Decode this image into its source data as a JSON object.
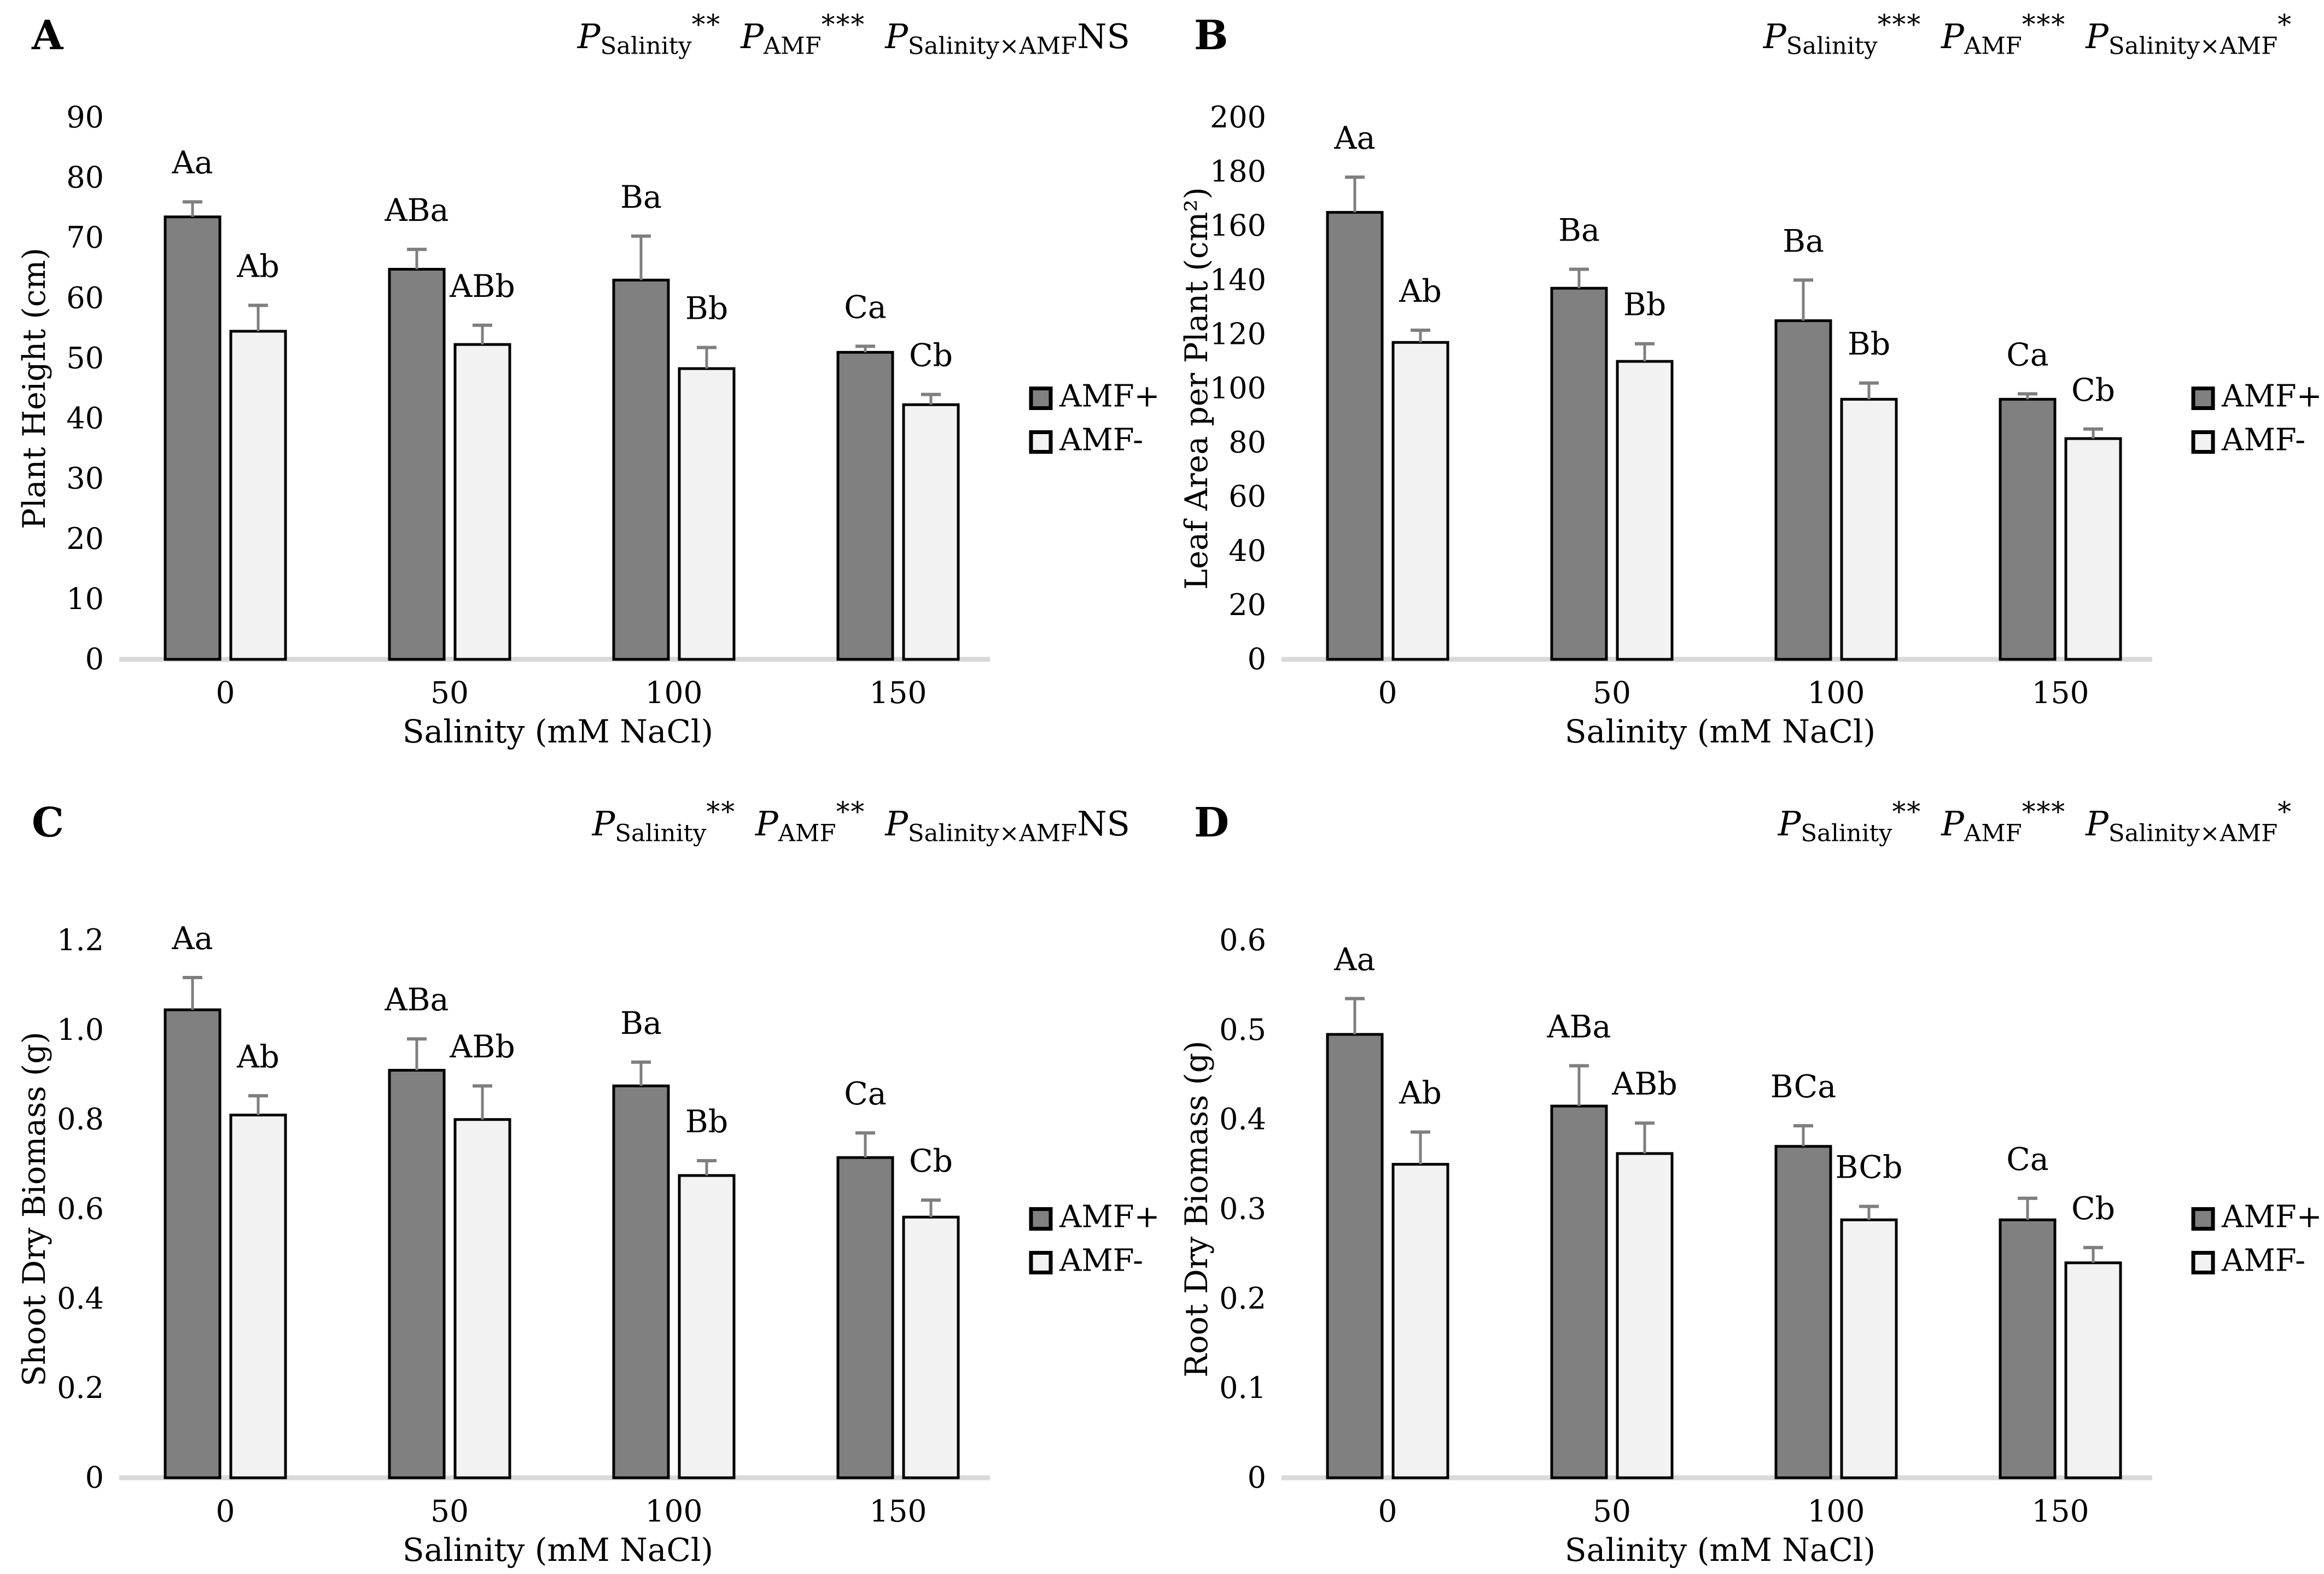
{
  "legend": {
    "items": [
      {
        "label": "AMF+",
        "color": "#808080"
      },
      {
        "label": "AMF-",
        "color": "#f2f2f2"
      }
    ]
  },
  "colors": {
    "bar_dark": "#808080",
    "bar_light": "#f2f2f2",
    "bar_border": "#000000",
    "error_bar": "#7f7f7f",
    "axis_line": "#d9d9d9",
    "text": "#000000"
  },
  "chart_data": [
    {
      "type": "bar",
      "panel": "A",
      "p_values": [
        {
          "term": "Salinity",
          "sig": "**"
        },
        {
          "term": "AMF",
          "sig": "***"
        },
        {
          "term": "Salinity×AMF",
          "sig": "NS"
        }
      ],
      "categories": [
        "0",
        "50",
        "100",
        "150"
      ],
      "series": [
        {
          "name": "AMF+",
          "fill": "#808080",
          "values": [
            73.5,
            64.8,
            63.0,
            51.0
          ],
          "error_up": [
            2.5,
            3.3,
            7.3,
            1.0
          ],
          "point_labels": [
            "Aa",
            "ABa",
            "Ba",
            "Ca"
          ]
        },
        {
          "name": "AMF-",
          "fill": "#f2f2f2",
          "values": [
            54.5,
            52.3,
            48.3,
            42.3
          ],
          "error_up": [
            4.3,
            3.2,
            3.5,
            1.7
          ],
          "point_labels": [
            "Ab",
            "ABb",
            "Bb",
            "Cb"
          ]
        }
      ],
      "ylabel": "Plant Height (cm)",
      "xlabel": "Salinity (mM NaCl)",
      "ylim": [
        0,
        90
      ],
      "yticks": [
        "0",
        "10",
        "20",
        "30",
        "40",
        "50",
        "60",
        "70",
        "80",
        "90"
      ],
      "grid": false,
      "legend_position": "middle-right"
    },
    {
      "type": "bar",
      "panel": "B",
      "p_values": [
        {
          "term": "Salinity",
          "sig": "***"
        },
        {
          "term": "AMF",
          "sig": "***"
        },
        {
          "term": "Salinity×AMF",
          "sig": "*"
        }
      ],
      "categories": [
        "0",
        "50",
        "100",
        "150"
      ],
      "series": [
        {
          "name": "AMF+",
          "fill": "#808080",
          "values": [
            165,
            137,
            125,
            96
          ],
          "error_up": [
            13,
            7,
            15,
            2
          ],
          "point_labels": [
            "Aa",
            "Ba",
            "Ba",
            "Ca"
          ]
        },
        {
          "name": "AMF-",
          "fill": "#f2f2f2",
          "values": [
            117,
            110,
            96,
            81.5
          ],
          "error_up": [
            4.5,
            6.5,
            6,
            3.5
          ],
          "point_labels": [
            "Ab",
            "Bb",
            "Bb",
            "Cb"
          ]
        }
      ],
      "ylabel": "Leaf Area per Plant (cm²)",
      "xlabel": "Salinity (mM NaCl)",
      "ylim": [
        0,
        200
      ],
      "yticks": [
        "0",
        "20",
        "40",
        "60",
        "80",
        "100",
        "120",
        "140",
        "160",
        "180",
        "200"
      ],
      "grid": false,
      "legend_position": "middle-right"
    },
    {
      "type": "bar",
      "panel": "C",
      "p_values": [
        {
          "term": "Salinity",
          "sig": "**"
        },
        {
          "term": "AMF",
          "sig": "**"
        },
        {
          "term": "Salinity×AMF",
          "sig": "NS"
        }
      ],
      "categories": [
        "0",
        "50",
        "100",
        "150"
      ],
      "series": [
        {
          "name": "AMF+",
          "fill": "#808080",
          "values": [
            1.045,
            0.91,
            0.875,
            0.715
          ],
          "error_up": [
            0.072,
            0.07,
            0.053,
            0.055
          ],
          "point_labels": [
            "Aa",
            "ABa",
            "Ba",
            "Ca"
          ]
        },
        {
          "name": "AMF-",
          "fill": "#f2f2f2",
          "values": [
            0.81,
            0.8,
            0.675,
            0.582
          ],
          "error_up": [
            0.043,
            0.075,
            0.033,
            0.038
          ],
          "point_labels": [
            "Ab",
            "ABb",
            "Bb",
            "Cb"
          ]
        }
      ],
      "ylabel": "Shoot Dry Biomass (g)",
      "xlabel": "Salinity (mM NaCl)",
      "ylim": [
        0,
        1.2
      ],
      "yticks": [
        "0",
        "0.2",
        "0.4",
        "0.6",
        "0.8",
        "1.0",
        "1.2"
      ],
      "grid": false,
      "legend_position": "middle-right"
    },
    {
      "type": "bar",
      "panel": "D",
      "p_values": [
        {
          "term": "Salinity",
          "sig": "**"
        },
        {
          "term": "AMF",
          "sig": "***"
        },
        {
          "term": "Salinity×AMF",
          "sig": "*"
        }
      ],
      "categories": [
        "0",
        "50",
        "100",
        "150"
      ],
      "series": [
        {
          "name": "AMF+",
          "fill": "#808080",
          "values": [
            0.495,
            0.415,
            0.37,
            0.288
          ],
          "error_up": [
            0.04,
            0.045,
            0.023,
            0.024
          ],
          "point_labels": [
            "Aa",
            "ABa",
            "BCa",
            "Ca"
          ]
        },
        {
          "name": "AMF-",
          "fill": "#f2f2f2",
          "values": [
            0.35,
            0.362,
            0.288,
            0.24
          ],
          "error_up": [
            0.036,
            0.034,
            0.015,
            0.017
          ],
          "point_labels": [
            "Ab",
            "ABb",
            "BCb",
            "Cb"
          ]
        }
      ],
      "ylabel": "Root Dry Biomass (g)",
      "xlabel": "Salinity (mM NaCl)",
      "ylim": [
        0,
        0.6
      ],
      "yticks": [
        "0",
        "0.1",
        "0.2",
        "0.3",
        "0.4",
        "0.5",
        "0.6"
      ],
      "grid": false,
      "legend_position": "middle-right"
    }
  ]
}
